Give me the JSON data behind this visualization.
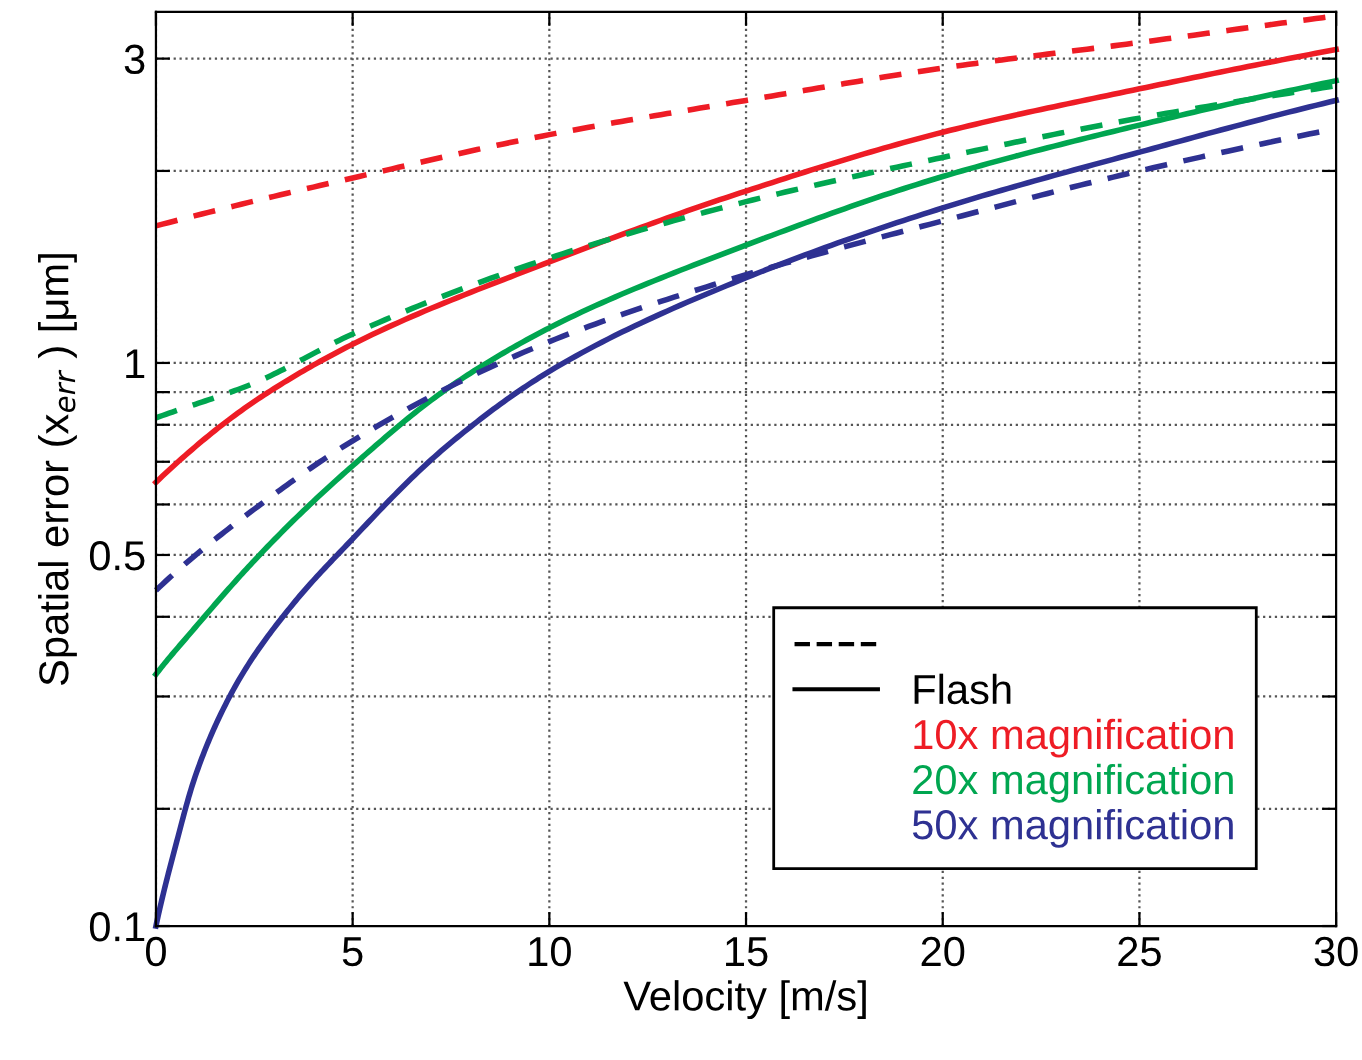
{
  "chart_data": {
    "type": "line",
    "xlabel": "Velocity [m/s]",
    "ylabel": "Spatial error (x$_{err}$ ) [μm]",
    "xlim": [
      0,
      30
    ],
    "xticks": [
      0,
      5,
      10,
      15,
      20,
      25,
      30
    ],
    "log": "y",
    "ylim": [
      0.131,
      3.55
    ],
    "yticks": [
      {
        "value": 0.131,
        "label": "0.1"
      },
      {
        "value": 0.2,
        "label": null
      },
      {
        "value": 0.3,
        "label": null
      },
      {
        "value": 0.4,
        "label": null
      },
      0.5,
      {
        "value": 0.6,
        "label": null
      },
      {
        "value": 0.7,
        "label": null
      },
      {
        "value": 0.8,
        "label": null
      },
      {
        "value": 0.9,
        "label": null
      },
      1,
      {
        "value": 2,
        "label": null
      },
      3
    ],
    "grid": true,
    "legend": "bottom right",
    "annotations": [
      "Flash"
    ],
    "series": [
      {
        "color": "#ee1c25",
        "line_style": "dashed",
        "x": [
          0,
          5,
          10,
          15,
          20,
          25,
          30
        ],
        "values": [
          1.64,
          1.95,
          2.28,
          2.58,
          2.9,
          3.18,
          3.5
        ]
      },
      {
        "name": "10x magnification",
        "color": "#ee1c25",
        "line_style": "solid",
        "x": [
          0,
          2.5,
          5,
          10,
          15,
          20,
          25,
          30
        ],
        "values": [
          0.65,
          0.87,
          1.07,
          1.44,
          1.86,
          2.3,
          2.69,
          3.1
        ]
      },
      {
        "color": "#00a650",
        "line_style": "dashed",
        "x": [
          0,
          2.5,
          5,
          10,
          15,
          20,
          25,
          30
        ],
        "values": [
          0.82,
          0.93,
          1.11,
          1.46,
          1.79,
          2.1,
          2.42,
          2.72
        ]
      },
      {
        "name": "20x magnification",
        "color": "#00a650",
        "line_style": "solid",
        "x": [
          0,
          1,
          2.5,
          5,
          7.5,
          10,
          15,
          20,
          25,
          30
        ],
        "values": [
          0.325,
          0.385,
          0.49,
          0.69,
          0.92,
          1.135,
          1.53,
          1.96,
          2.36,
          2.77
        ]
      },
      {
        "color": "#2e3192",
        "line_style": "dashed",
        "x": [
          0,
          2.5,
          5,
          10,
          15,
          20,
          25,
          30
        ],
        "values": [
          0.44,
          0.59,
          0.755,
          1.08,
          1.375,
          1.67,
          2.0,
          2.33
        ]
      },
      {
        "name": "50x magnification",
        "color": "#2e3192",
        "line_style": "solid",
        "x": [
          0,
          0.5,
          1,
          2,
          3.5,
          5,
          7.5,
          10,
          15,
          20,
          25,
          30
        ],
        "values": [
          0.131,
          0.175,
          0.225,
          0.31,
          0.42,
          0.53,
          0.75,
          0.97,
          1.36,
          1.75,
          2.14,
          2.58
        ]
      }
    ]
  }
}
